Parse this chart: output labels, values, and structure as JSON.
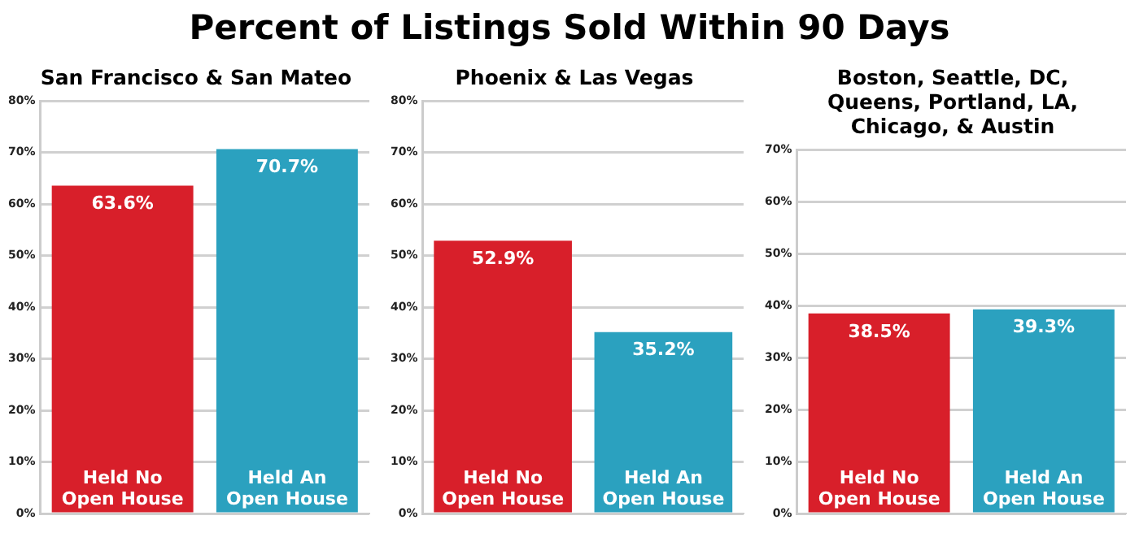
{
  "chart_data": [
    {
      "type": "bar",
      "title": "Percent of Listings Sold Within 90 Days",
      "subtitle": "San Francisco & San Mateo",
      "categories": [
        "Held No Open House",
        "Held An Open House"
      ],
      "series": [
        {
          "colors": [
            "#d81f2a",
            "#2ba1bf"
          ],
          "values": [
            63.6,
            70.7
          ],
          "value_labels": [
            "63.6%",
            "70.7%"
          ]
        }
      ],
      "ylim": [
        0,
        80
      ],
      "yticks": [
        {
          "value": 0,
          "label": "0%"
        },
        {
          "value": 10,
          "label": "10%"
        },
        {
          "value": 20,
          "label": "20%"
        },
        {
          "value": 30,
          "label": "30%"
        },
        {
          "value": 40,
          "label": "40%"
        },
        {
          "value": 50,
          "label": "50%"
        },
        {
          "value": 60,
          "label": "60%"
        },
        {
          "value": 70,
          "label": "70%"
        },
        {
          "value": 80,
          "label": "80%"
        }
      ],
      "grid": "y",
      "legend": false
    },
    {
      "type": "bar",
      "subtitle": "Phoenix & Las Vegas",
      "categories": [
        "Held No Open House",
        "Held An Open House"
      ],
      "series": [
        {
          "colors": [
            "#d81f2a",
            "#2ba1bf"
          ],
          "values": [
            52.9,
            35.2
          ],
          "value_labels": [
            "52.9%",
            "35.2%"
          ]
        }
      ],
      "ylim": [
        0,
        80
      ],
      "yticks": [
        {
          "value": 0,
          "label": "0%"
        },
        {
          "value": 10,
          "label": "10%"
        },
        {
          "value": 20,
          "label": "20%"
        },
        {
          "value": 30,
          "label": "30%"
        },
        {
          "value": 40,
          "label": "40%"
        },
        {
          "value": 50,
          "label": "50%"
        },
        {
          "value": 60,
          "label": "60%"
        },
        {
          "value": 70,
          "label": "70%"
        },
        {
          "value": 80,
          "label": "80%"
        }
      ],
      "grid": "y",
      "legend": false
    },
    {
      "type": "bar",
      "subtitle": "Boston, Seattle, DC, Queens, Portland, LA, Chicago, & Austin",
      "categories": [
        "Held No Open House",
        "Held An Open House"
      ],
      "series": [
        {
          "colors": [
            "#d81f2a",
            "#2ba1bf"
          ],
          "values": [
            38.5,
            39.3
          ],
          "value_labels": [
            "38.5%",
            "39.3%"
          ]
        }
      ],
      "ylim": [
        0,
        70
      ],
      "yticks": [
        {
          "value": 0,
          "label": "0%"
        },
        {
          "value": 10,
          "label": "10%"
        },
        {
          "value": 20,
          "label": "20%"
        },
        {
          "value": 30,
          "label": "30%"
        },
        {
          "value": 40,
          "label": "40%"
        },
        {
          "value": 50,
          "label": "50%"
        },
        {
          "value": 60,
          "label": "60%"
        },
        {
          "value": 70,
          "label": "70%"
        }
      ],
      "grid": "y",
      "legend": false
    }
  ]
}
